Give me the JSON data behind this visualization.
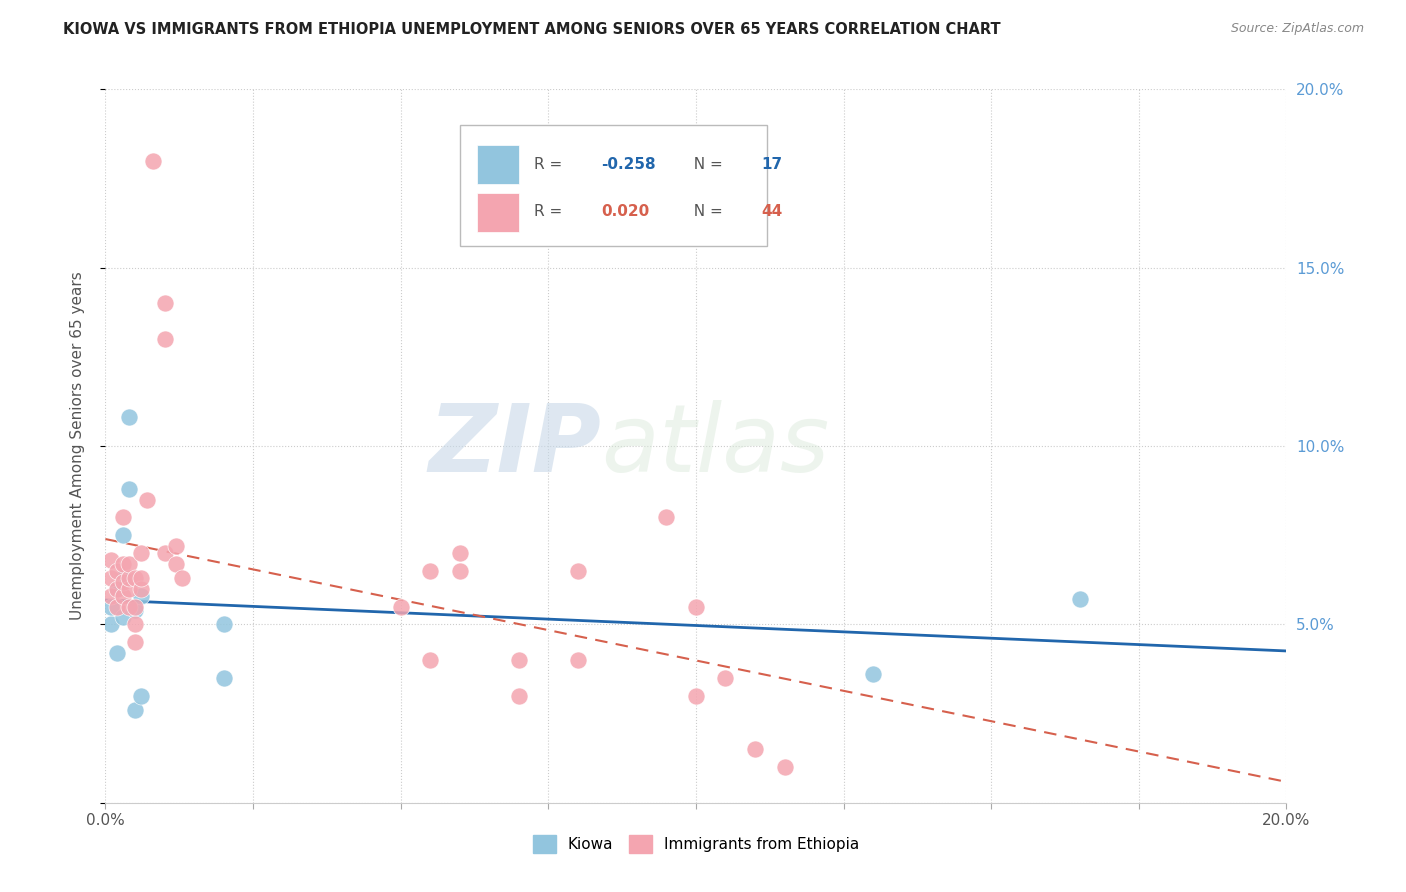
{
  "title": "KIOWA VS IMMIGRANTS FROM ETHIOPIA UNEMPLOYMENT AMONG SENIORS OVER 65 YEARS CORRELATION CHART",
  "source": "Source: ZipAtlas.com",
  "ylabel": "Unemployment Among Seniors over 65 years",
  "xlim": [
    0.0,
    0.2
  ],
  "ylim": [
    0.0,
    0.2
  ],
  "xticks": [
    0.0,
    0.025,
    0.05,
    0.075,
    0.1,
    0.125,
    0.15,
    0.175,
    0.2
  ],
  "yticks": [
    0.0,
    0.05,
    0.1,
    0.15,
    0.2
  ],
  "xticklabels_major": [
    "0.0%",
    "",
    "",
    "",
    "",
    "",
    "",
    "",
    "20.0%"
  ],
  "yticklabels_right": [
    "5.0%",
    "10.0%",
    "15.0%",
    "20.0%"
  ],
  "kiowa_color": "#92c5de",
  "ethiopia_color": "#f4a5b0",
  "kiowa_line_color": "#2166ac",
  "ethiopia_line_color": "#d6604d",
  "watermark_zip": "ZIP",
  "watermark_atlas": "atlas",
  "legend_R_kiowa": "-0.258",
  "legend_N_kiowa": "17",
  "legend_R_ethiopia": "0.020",
  "legend_N_ethiopia": "44",
  "kiowa_x": [
    0.001,
    0.001,
    0.002,
    0.002,
    0.003,
    0.003,
    0.003,
    0.004,
    0.004,
    0.005,
    0.005,
    0.006,
    0.006,
    0.02,
    0.02,
    0.13,
    0.165
  ],
  "kiowa_y": [
    0.05,
    0.055,
    0.06,
    0.042,
    0.075,
    0.063,
    0.052,
    0.108,
    0.088,
    0.054,
    0.026,
    0.058,
    0.03,
    0.05,
    0.035,
    0.036,
    0.057
  ],
  "ethiopia_x": [
    0.001,
    0.001,
    0.001,
    0.002,
    0.002,
    0.002,
    0.003,
    0.003,
    0.003,
    0.003,
    0.004,
    0.004,
    0.004,
    0.004,
    0.005,
    0.005,
    0.005,
    0.005,
    0.006,
    0.006,
    0.006,
    0.007,
    0.008,
    0.01,
    0.01,
    0.01,
    0.012,
    0.012,
    0.013,
    0.05,
    0.055,
    0.055,
    0.06,
    0.06,
    0.07,
    0.07,
    0.08,
    0.08,
    0.095,
    0.1,
    0.1,
    0.105,
    0.11,
    0.115
  ],
  "ethiopia_y": [
    0.058,
    0.063,
    0.068,
    0.055,
    0.06,
    0.065,
    0.058,
    0.062,
    0.067,
    0.08,
    0.055,
    0.06,
    0.063,
    0.067,
    0.045,
    0.05,
    0.055,
    0.063,
    0.06,
    0.063,
    0.07,
    0.085,
    0.18,
    0.14,
    0.13,
    0.07,
    0.067,
    0.072,
    0.063,
    0.055,
    0.04,
    0.065,
    0.065,
    0.07,
    0.03,
    0.04,
    0.04,
    0.065,
    0.08,
    0.055,
    0.03,
    0.035,
    0.015,
    0.01
  ]
}
